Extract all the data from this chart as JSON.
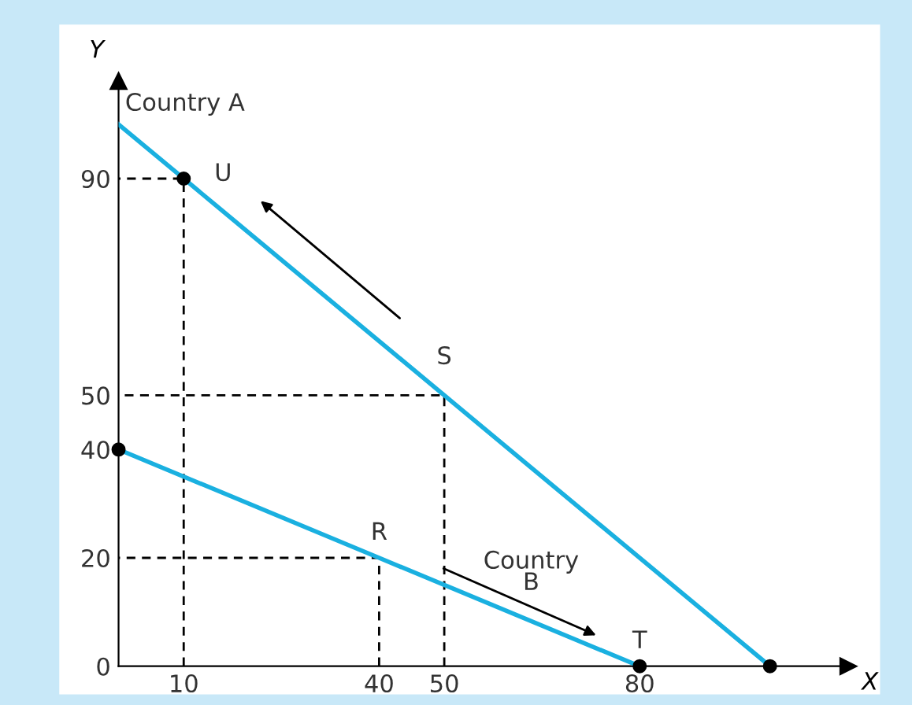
{
  "chart_data": {
    "type": "line",
    "xlabel": "X",
    "ylabel": "Y",
    "xlim": [
      0,
      112
    ],
    "ylim": [
      0,
      108
    ],
    "xticks": [
      10,
      40,
      50,
      80
    ],
    "yticks": [
      0,
      20,
      40,
      50,
      90
    ],
    "grid": false,
    "series": [
      {
        "color": "#1ab0e0",
        "x": [
          0,
          10,
          50,
          100
        ],
        "values": [
          100,
          90,
          50,
          0
        ]
      },
      {
        "color": "#1ab0e0",
        "x": [
          0,
          40,
          80
        ],
        "values": [
          40,
          20,
          0
        ]
      },
      {
        "type": "line",
        "color": "#000000",
        "line_style": "dashed",
        "x": [
          10,
          10,
          0
        ],
        "values": [
          0,
          90,
          90
        ]
      },
      {
        "type": "line",
        "color": "#000000",
        "line_style": "dashed",
        "x": [
          50,
          50,
          0
        ],
        "values": [
          0,
          50,
          50
        ]
      },
      {
        "type": "line",
        "color": "#000000",
        "line_style": "dashed",
        "x": [
          40,
          40,
          0
        ],
        "values": [
          0,
          20,
          20
        ]
      },
      {
        "type": "scatter",
        "color": "#000000",
        "marker": "circle",
        "x": [
          10,
          0,
          80,
          100
        ],
        "values": [
          90,
          40,
          0,
          0
        ]
      }
    ],
    "annotations": [
      {
        "text": "Country A",
        "x": 0,
        "y": 100
      },
      {
        "text": "U",
        "x": 10,
        "y": 90
      },
      {
        "text": "S",
        "x": 50,
        "y": 50
      },
      {
        "text": "R",
        "x": 40,
        "y": 20
      },
      {
        "text": "T",
        "x": 80,
        "y": 0
      },
      "Country\nB"
    ]
  }
}
